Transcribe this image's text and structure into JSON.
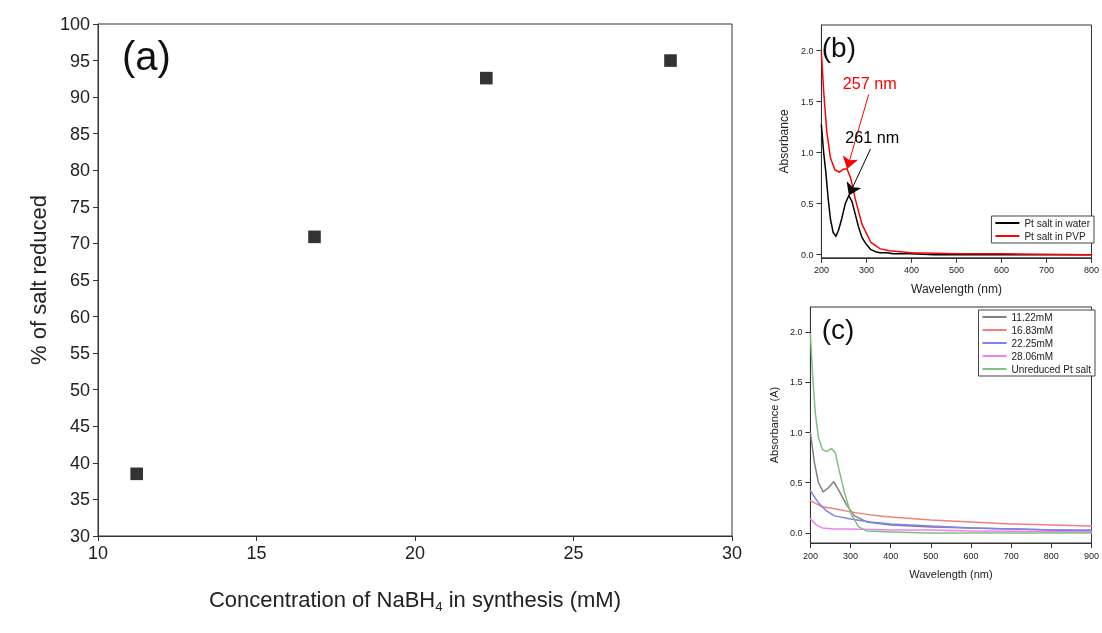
{
  "chart_data": [
    {
      "type": "scatter",
      "xlabel": "Concentration of NaBH$_{4}$ in synthesis (mM)",
      "ylabel": "% of salt reduced",
      "annotations": [
        "(a)"
      ],
      "marker": "square",
      "x": [
        11.22,
        16.83,
        22.25,
        28.06
      ],
      "series": [
        {
          "color": "#000000",
          "values": [
            38.5,
            70.9,
            92.6,
            95.0
          ]
        }
      ],
      "xlim": [
        10,
        30
      ],
      "xticks": [
        10,
        15,
        20,
        25,
        30
      ],
      "ylim": [
        30,
        100
      ],
      "yticks": [
        30,
        35,
        40,
        45,
        50,
        55,
        60,
        65,
        70,
        75,
        80,
        85,
        90,
        95,
        100
      ]
    },
    {
      "type": "line",
      "xlabel": "Wavelength (nm)",
      "ylabel": "Absorbance",
      "legend": "bottom right",
      "annotations": [
        "(b)",
        {
          "text": "261 nm",
          "x": 261,
          "y": 0.58
        },
        {
          "text": "257 nm",
          "x": 257,
          "y": 0.84
        }
      ],
      "series": [
        {
          "name": "Pt salt in water",
          "color": "#000000",
          "x": [
            200,
            205,
            210,
            215,
            220,
            226,
            232,
            238,
            245,
            253,
            261,
            268,
            275,
            282,
            290,
            300,
            310,
            320,
            330,
            345,
            360,
            400,
            450,
            500,
            600,
            800
          ],
          "values": [
            1.27,
            1.0,
            0.8,
            0.55,
            0.35,
            0.22,
            0.18,
            0.24,
            0.35,
            0.5,
            0.58,
            0.52,
            0.4,
            0.28,
            0.17,
            0.1,
            0.05,
            0.03,
            0.02,
            0.02,
            0.01,
            0.01,
            0.0,
            0.0,
            0.0,
            0.0
          ]
        },
        {
          "name": "Pt salt in PVP",
          "color": "#ff0000",
          "x": [
            200,
            205,
            212,
            220,
            230,
            240,
            250,
            257,
            265,
            275,
            290,
            310,
            330,
            350,
            400,
            500,
            600,
            800
          ],
          "values": [
            1.98,
            1.6,
            1.2,
            0.95,
            0.83,
            0.81,
            0.84,
            0.84,
            0.75,
            0.55,
            0.3,
            0.12,
            0.06,
            0.04,
            0.02,
            0.01,
            0.01,
            0.0
          ]
        }
      ],
      "xlim": [
        200,
        800
      ],
      "xticks": [
        200,
        300,
        400,
        500,
        600,
        700,
        800
      ],
      "ylim": [
        -0.03,
        2.25
      ],
      "yticks": [
        {
          "value": 0,
          "label": "0.0"
        },
        {
          "value": 0.5,
          "label": "0.5"
        },
        {
          "value": 1,
          "label": "1.0"
        },
        {
          "value": 1.5,
          "label": "1.5"
        },
        {
          "value": 2,
          "label": "2.0"
        }
      ]
    },
    {
      "type": "line",
      "xlabel": "Wavelength (nm)",
      "ylabel": "Absorbance (A)",
      "legend": "top right",
      "annotations": [
        "(c)"
      ],
      "series": [
        {
          "name": "11.22mM",
          "color": "#808080",
          "x": [
            200,
            210,
            220,
            232,
            245,
            258,
            270,
            290,
            310,
            340,
            400,
            500,
            600,
            700,
            800,
            900
          ],
          "values": [
            1.0,
            0.7,
            0.5,
            0.41,
            0.45,
            0.51,
            0.43,
            0.28,
            0.17,
            0.11,
            0.08,
            0.06,
            0.05,
            0.04,
            0.03,
            0.02
          ]
        },
        {
          "name": "16.83mM",
          "color": "#f08080",
          "x": [
            200,
            230,
            260,
            300,
            350,
            400,
            500,
            600,
            700,
            800,
            900
          ],
          "values": [
            0.32,
            0.26,
            0.24,
            0.21,
            0.18,
            0.16,
            0.13,
            0.11,
            0.09,
            0.08,
            0.07
          ]
        },
        {
          "name": "22.25mM",
          "color": "#8080f0",
          "x": [
            200,
            220,
            240,
            260,
            300,
            350,
            400,
            500,
            600,
            700,
            800,
            900
          ],
          "values": [
            0.42,
            0.3,
            0.22,
            0.17,
            0.14,
            0.11,
            0.09,
            0.07,
            0.05,
            0.04,
            0.03,
            0.03
          ]
        },
        {
          "name": "28.06mM",
          "color": "#f080f0",
          "x": [
            200,
            215,
            230,
            260,
            300,
            400,
            500,
            600,
            900
          ],
          "values": [
            0.14,
            0.08,
            0.05,
            0.04,
            0.04,
            0.03,
            0.03,
            0.02,
            0.01
          ]
        },
        {
          "name": "Unreduced Pt salt",
          "color": "#80c080",
          "x": [
            200,
            205,
            212,
            220,
            230,
            240,
            252,
            262,
            270,
            285,
            300,
            320,
            340,
            400,
            500,
            900
          ],
          "values": [
            1.98,
            1.6,
            1.2,
            0.95,
            0.83,
            0.81,
            0.84,
            0.8,
            0.65,
            0.4,
            0.2,
            0.06,
            0.02,
            0.01,
            0.0,
            0.0
          ]
        }
      ],
      "xlim": [
        200,
        900
      ],
      "xticks": [
        200,
        300,
        400,
        500,
        600,
        700,
        800,
        900
      ],
      "ylim": [
        -0.1,
        2.25
      ],
      "yticks": [
        {
          "value": 0,
          "label": "0.0"
        },
        {
          "value": 0.5,
          "label": "0.5"
        },
        {
          "value": 1,
          "label": "1.0"
        },
        {
          "value": 1.5,
          "label": "1.5"
        },
        {
          "value": 2,
          "label": "2.0"
        }
      ]
    }
  ]
}
